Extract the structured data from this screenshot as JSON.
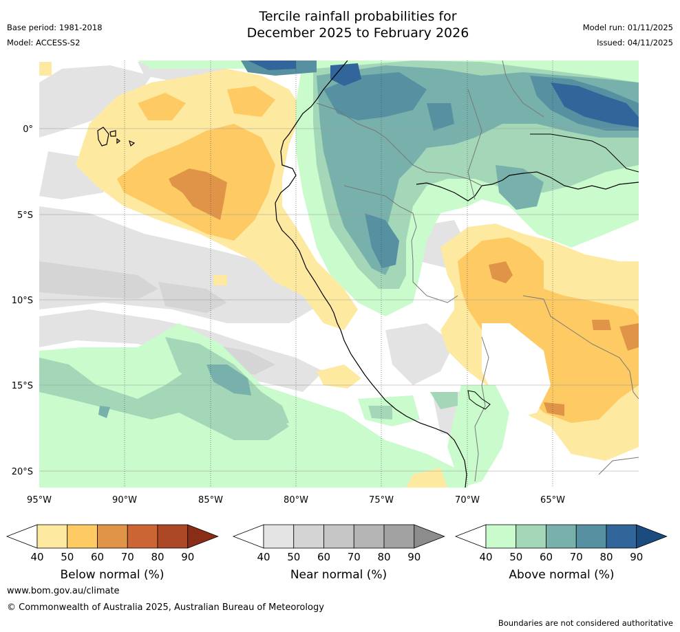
{
  "title": {
    "line1": "Tercile rainfall probabilities for",
    "line2": "December 2025 to February 2026"
  },
  "meta_left": {
    "base_period": "Base period: 1981-2018",
    "model": "Model: ACCESS-S2"
  },
  "meta_right": {
    "model_run": "Model run: 01/11/2025",
    "issued": "Issued: 04/11/2025"
  },
  "map": {
    "lat_labels": [
      "0°",
      "5°S",
      "10°S",
      "15°S",
      "20°S"
    ],
    "lon_labels": [
      "95°W",
      "90°W",
      "85°W",
      "80°W",
      "75°W",
      "70°W",
      "65°W"
    ]
  },
  "colorbars": [
    {
      "label": "Below normal (%)",
      "ticks": [
        "40",
        "50",
        "60",
        "70",
        "80",
        "90"
      ],
      "colors": [
        "#fee9a1",
        "#fdca64",
        "#e09447",
        "#cb6534",
        "#ad4826",
        "#8a2d17"
      ]
    },
    {
      "label": "Near normal (%)",
      "ticks": [
        "40",
        "50",
        "60",
        "70",
        "80",
        "90"
      ],
      "colors": [
        "#e4e4e4",
        "#d4d4d4",
        "#c6c6c6",
        "#b4b4b4",
        "#a2a2a2",
        "#8c8c8c"
      ]
    },
    {
      "label": "Above normal (%)",
      "ticks": [
        "40",
        "50",
        "60",
        "70",
        "80",
        "90"
      ],
      "colors": [
        "#c9fbcc",
        "#a4d7b8",
        "#78b1ac",
        "#5690a1",
        "#32669a",
        "#1a4c80"
      ]
    }
  ],
  "footer": {
    "url": "www.bom.gov.au/climate",
    "copyright": "© Commonwealth of Australia 2025, Australian Bureau of Meteorology",
    "disclaimer": "Boundaries are not considered authoritative"
  }
}
